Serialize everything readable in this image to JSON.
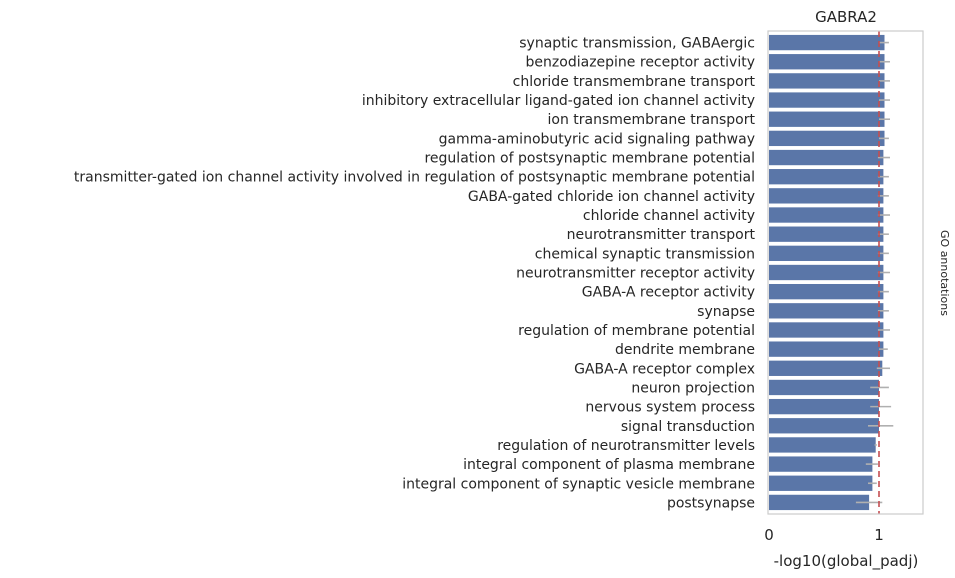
{
  "chart_data": {
    "type": "bar",
    "orientation": "horizontal",
    "title": "GABRA2",
    "xlabel": "-log10(global_padj)",
    "ylabel": "",
    "side_label": "GO annotations",
    "xlim": [
      0,
      1.4
    ],
    "xticks": [
      0,
      1
    ],
    "grid": false,
    "reference_line": {
      "x": 1.0,
      "style": "dashed",
      "color": "#c44e52"
    },
    "bar_color": "#5a76a8",
    "error_color": "#b0b0b0",
    "categories": [
      "synaptic transmission, GABAergic",
      "benzodiazepine receptor activity",
      "chloride transmembrane transport",
      "inhibitory extracellular ligand-gated ion channel activity",
      "ion transmembrane transport",
      "gamma-aminobutyric acid signaling pathway",
      "regulation of postsynaptic membrane potential",
      "transmitter-gated ion channel activity involved in regulation of postsynaptic membrane potential",
      "GABA-gated chloride ion channel activity",
      "chloride channel activity",
      "neurotransmitter transport",
      "chemical synaptic transmission",
      "neurotransmitter receptor activity",
      "GABA-A receptor activity",
      "synapse",
      "regulation of membrane potential",
      "dendrite membrane",
      "GABA-A receptor complex",
      "neuron projection",
      "nervous system process",
      "signal transduction",
      "regulation of neurotransmitter levels",
      "integral component of plasma membrane",
      "integral component of synaptic vesicle membrane",
      "postsynapse"
    ],
    "values": [
      1.05,
      1.05,
      1.05,
      1.05,
      1.05,
      1.05,
      1.04,
      1.04,
      1.04,
      1.04,
      1.04,
      1.04,
      1.04,
      1.04,
      1.04,
      1.04,
      1.04,
      1.03,
      1.0,
      1.0,
      1.0,
      0.97,
      0.94,
      0.94,
      0.91
    ],
    "errors": [
      [
        1.0,
        1.09
      ],
      [
        1.0,
        1.1
      ],
      [
        1.0,
        1.1
      ],
      [
        1.0,
        1.1
      ],
      [
        1.0,
        1.1
      ],
      [
        1.0,
        1.09
      ],
      [
        0.99,
        1.1
      ],
      [
        0.99,
        1.09
      ],
      [
        0.99,
        1.09
      ],
      [
        0.99,
        1.1
      ],
      [
        0.99,
        1.09
      ],
      [
        0.99,
        1.09
      ],
      [
        0.99,
        1.1
      ],
      [
        0.99,
        1.09
      ],
      [
        0.99,
        1.09
      ],
      [
        0.99,
        1.1
      ],
      [
        1.0,
        1.08
      ],
      [
        0.98,
        1.1
      ],
      [
        0.92,
        1.09
      ],
      [
        0.92,
        1.11
      ],
      [
        0.9,
        1.13
      ],
      [
        0.96,
        0.98
      ],
      [
        0.88,
        0.99
      ],
      [
        0.9,
        0.98
      ],
      [
        0.79,
        1.03
      ]
    ]
  }
}
